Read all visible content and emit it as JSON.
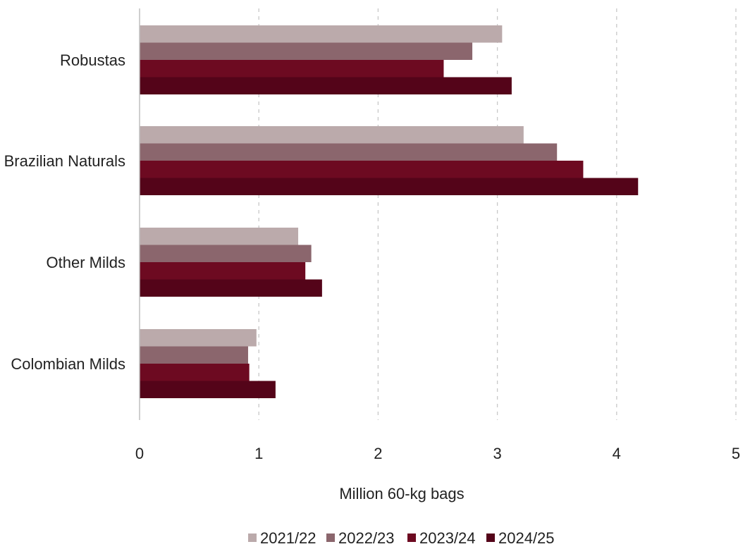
{
  "chart_data": {
    "type": "bar",
    "orientation": "horizontal",
    "categories": [
      "Robustas",
      "Brazilian Naturals",
      "Other Milds",
      "Colombian Milds"
    ],
    "series": [
      {
        "name": "2021/22",
        "color": "#bbaaab",
        "values": [
          3.04,
          3.22,
          1.33,
          0.98
        ]
      },
      {
        "name": "2022/23",
        "color": "#8b666d",
        "values": [
          2.79,
          3.5,
          1.44,
          0.91
        ]
      },
      {
        "name": "2023/24",
        "color": "#6d0a21",
        "values": [
          2.55,
          3.72,
          1.39,
          0.92
        ]
      },
      {
        "name": "2024/25",
        "color": "#540419",
        "values": [
          3.12,
          4.18,
          1.53,
          1.14
        ]
      }
    ],
    "xlabel": "Million 60-kg bags",
    "xlim": [
      0,
      5
    ],
    "xticks": [
      0,
      1,
      2,
      3,
      4,
      5
    ],
    "grid": "vertical-dashed",
    "legend_position": "bottom"
  }
}
